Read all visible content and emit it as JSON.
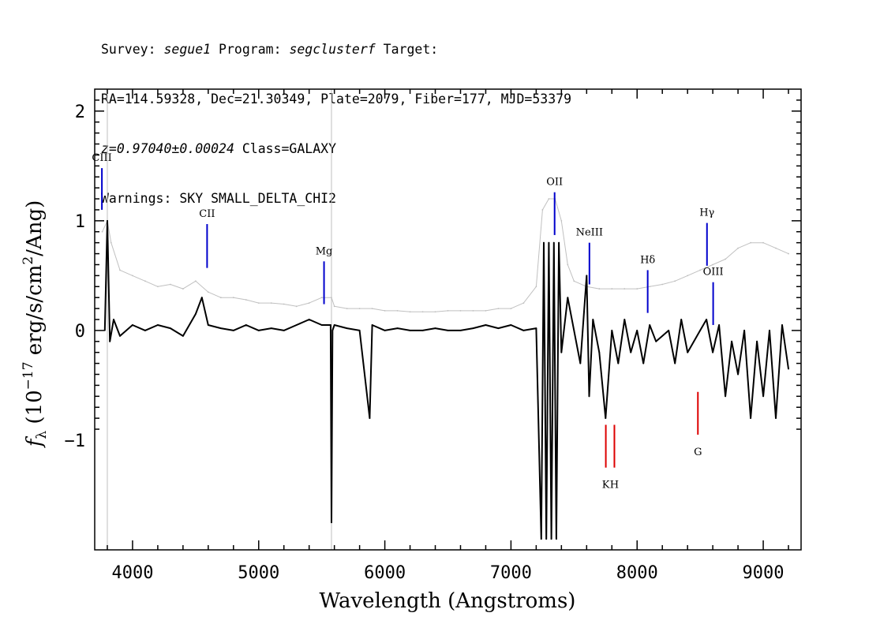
{
  "header": {
    "survey_label": "Survey: ",
    "survey": "segue1",
    "program_label": " Program: ",
    "program": "segclusterf",
    "target_label": " Target:",
    "line2": "RA=114.59328, Dec=21.30349, Plate=2079, Fiber=177, MJD=53379",
    "redshift": "z=0.97040±0.00024",
    "class_text": " Class=GALAXY",
    "warnings": "Warnings: SKY SMALL_DELTA_CHI2"
  },
  "chart_data": {
    "type": "line",
    "xlabel": "Wavelength (Angstroms)",
    "ylabel_prefix": "f",
    "ylabel_sub": "λ",
    "ylabel_rest": " (10",
    "ylabel_exp": "−17",
    "ylabel_units": " erg/s/cm",
    "ylabel_exp2": "2",
    "ylabel_tail": "/Ang)",
    "xlim": [
      3700,
      9300
    ],
    "ylim": [
      -2.0,
      2.2
    ],
    "x_ticks": [
      4000,
      5000,
      6000,
      7000,
      8000,
      9000
    ],
    "x_tick_labels": [
      "4000",
      "5000",
      "6000",
      "7000",
      "8000",
      "9000"
    ],
    "y_ticks": [
      -1,
      0,
      1,
      2
    ],
    "y_tick_labels": [
      "−1",
      "0",
      "1",
      "2"
    ],
    "grid": false,
    "reference_lines_x": [
      3800,
      5577
    ],
    "series": [
      {
        "role": "error",
        "color": "#c0c0c0",
        "x": [
          3760,
          3800,
          3830,
          3900,
          4000,
          4100,
          4200,
          4300,
          4400,
          4500,
          4600,
          4700,
          4800,
          4900,
          5000,
          5100,
          5200,
          5300,
          5400,
          5500,
          5577,
          5600,
          5700,
          5800,
          5900,
          6000,
          6100,
          6200,
          6300,
          6400,
          6500,
          6600,
          6700,
          6800,
          6900,
          7000,
          7100,
          7200,
          7250,
          7300,
          7350,
          7400,
          7450,
          7500,
          7600,
          7700,
          7800,
          7900,
          8000,
          8100,
          8200,
          8300,
          8400,
          8500,
          8600,
          8700,
          8800,
          8900,
          9000,
          9100,
          9200
        ],
        "y": [
          0.9,
          1.0,
          0.8,
          0.55,
          0.5,
          0.45,
          0.4,
          0.42,
          0.38,
          0.45,
          0.35,
          0.3,
          0.3,
          0.28,
          0.25,
          0.25,
          0.24,
          0.22,
          0.25,
          0.3,
          0.3,
          0.22,
          0.2,
          0.2,
          0.2,
          0.18,
          0.18,
          0.17,
          0.17,
          0.17,
          0.18,
          0.18,
          0.18,
          0.18,
          0.2,
          0.2,
          0.25,
          0.4,
          1.1,
          1.2,
          1.2,
          1.0,
          0.6,
          0.45,
          0.4,
          0.38,
          0.38,
          0.38,
          0.38,
          0.4,
          0.42,
          0.45,
          0.5,
          0.55,
          0.6,
          0.65,
          0.75,
          0.8,
          0.8,
          0.75,
          0.7
        ]
      },
      {
        "role": "flux",
        "color": "#000000",
        "x": [
          3780,
          3800,
          3820,
          3850,
          3900,
          4000,
          4100,
          4200,
          4300,
          4400,
          4500,
          4550,
          4600,
          4700,
          4800,
          4900,
          5000,
          5100,
          5200,
          5300,
          5400,
          5500,
          5570,
          5577,
          5585,
          5600,
          5700,
          5800,
          5880,
          5900,
          6000,
          6100,
          6200,
          6300,
          6400,
          6500,
          6600,
          6700,
          6800,
          6900,
          7000,
          7100,
          7200,
          7240,
          7260,
          7280,
          7300,
          7320,
          7340,
          7360,
          7380,
          7400,
          7450,
          7500,
          7550,
          7600,
          7620,
          7650,
          7700,
          7750,
          7800,
          7850,
          7900,
          7950,
          8000,
          8050,
          8100,
          8150,
          8200,
          8250,
          8300,
          8350,
          8400,
          8450,
          8500,
          8550,
          8600,
          8650,
          8700,
          8750,
          8800,
          8850,
          8900,
          8950,
          9000,
          9050,
          9100,
          9150,
          9200
        ],
        "y": [
          0.0,
          1.0,
          -0.1,
          0.1,
          -0.05,
          0.05,
          0.0,
          0.05,
          0.02,
          -0.05,
          0.15,
          0.3,
          0.05,
          0.02,
          0.0,
          0.05,
          0.0,
          0.02,
          0.0,
          0.05,
          0.1,
          0.05,
          0.05,
          -1.75,
          0.0,
          0.05,
          0.02,
          0.0,
          -0.8,
          0.05,
          0.0,
          0.02,
          0.0,
          0.0,
          0.02,
          0.0,
          0.0,
          0.02,
          0.05,
          0.02,
          0.05,
          0.0,
          0.02,
          -1.9,
          0.8,
          -1.9,
          0.8,
          -1.9,
          0.8,
          -1.9,
          0.8,
          -0.2,
          0.3,
          0.0,
          -0.3,
          0.5,
          -0.6,
          0.1,
          -0.2,
          -0.8,
          0.0,
          -0.3,
          0.1,
          -0.2,
          0.0,
          -0.3,
          0.05,
          -0.1,
          -0.05,
          0.0,
          -0.3,
          0.1,
          -0.2,
          -0.1,
          0.0,
          0.1,
          -0.2,
          0.05,
          -0.6,
          -0.1,
          -0.4,
          0.0,
          -0.8,
          -0.1,
          -0.6,
          0.0,
          -0.8,
          0.05,
          -0.35
        ]
      }
    ],
    "line_markers": [
      {
        "label": "CIII",
        "x": 3757,
        "y_top": 1.48,
        "y_bottom": 1.1,
        "color": "#0000cc",
        "label_side": "above"
      },
      {
        "label": "CII",
        "x": 4591,
        "y_top": 0.97,
        "y_bottom": 0.57,
        "color": "#0000cc",
        "label_side": "above"
      },
      {
        "label": "Mg",
        "x": 5518,
        "y_top": 0.63,
        "y_bottom": 0.24,
        "color": "#0000cc",
        "label_side": "above"
      },
      {
        "label": "OII",
        "x": 7346,
        "y_top": 1.26,
        "y_bottom": 0.87,
        "color": "#0000cc",
        "label_side": "above"
      },
      {
        "label": "NeIII",
        "x": 7622,
        "y_top": 0.8,
        "y_bottom": 0.42,
        "color": "#0000cc",
        "label_side": "above"
      },
      {
        "label": "Hδ",
        "x": 8084,
        "y_top": 0.55,
        "y_bottom": 0.16,
        "color": "#0000cc",
        "label_side": "above"
      },
      {
        "label": "Hγ",
        "x": 8554,
        "y_top": 0.98,
        "y_bottom": 0.59,
        "color": "#0000cc",
        "label_side": "above"
      },
      {
        "label": "OIII",
        "x": 8603,
        "y_top": 0.44,
        "y_bottom": 0.05,
        "color": "#0000cc",
        "label_side": "above"
      },
      {
        "label": "K",
        "x": 7752,
        "y_top": -0.86,
        "y_bottom": -1.25,
        "color": "#dd0000",
        "label_side": "below"
      },
      {
        "label": "H",
        "x": 7820,
        "y_top": -0.86,
        "y_bottom": -1.25,
        "color": "#dd0000",
        "label_side": "below"
      },
      {
        "label": "G",
        "x": 8482,
        "y_top": -0.56,
        "y_bottom": -0.95,
        "color": "#dd0000",
        "label_side": "below"
      }
    ]
  }
}
